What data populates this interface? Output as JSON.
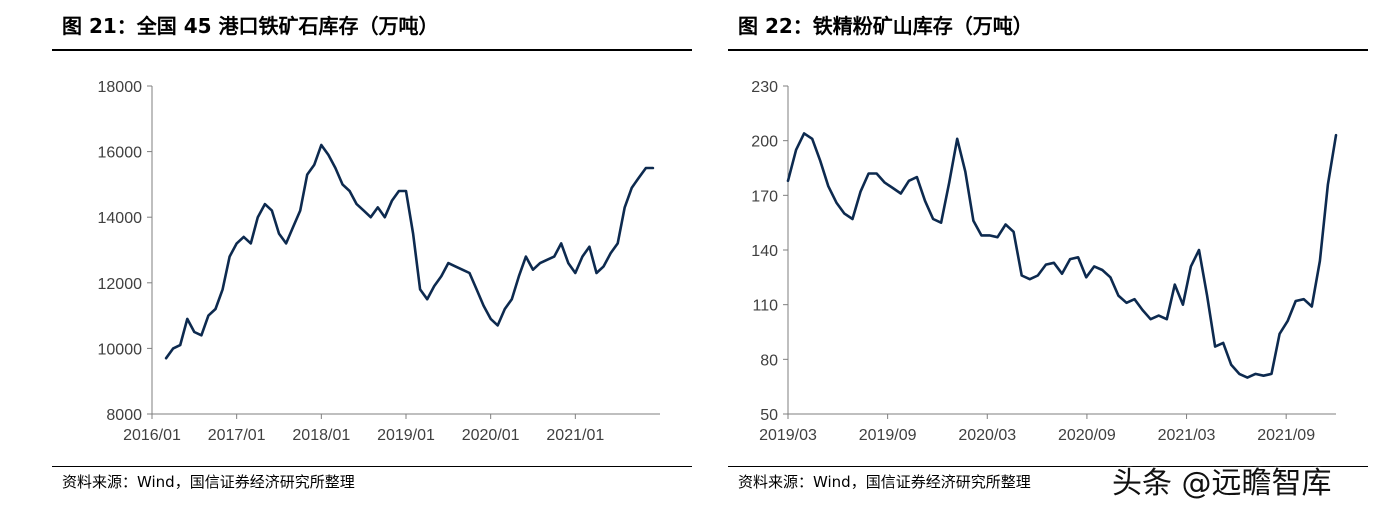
{
  "panels": [
    {
      "title": "图 21：全国 45 港口铁矿石库存（万吨）",
      "source": "资料来源：Wind，国信证券经济研究所整理"
    },
    {
      "title": "图 22：铁精粉矿山库存（万吨）",
      "source": "资料来源：Wind，国信证券经济研究所整理"
    }
  ],
  "watermark": "头条 @远瞻智库",
  "chart_data": [
    {
      "type": "line",
      "title": "全国 45 港口铁矿石库存（万吨）",
      "series_color": "#0d2a4f",
      "ylim": [
        8000,
        18000
      ],
      "yticks": [
        8000,
        10000,
        12000,
        14000,
        16000,
        18000
      ],
      "xticks": [
        "2016/01",
        "2017/01",
        "2018/01",
        "2019/01",
        "2020/01",
        "2021/01"
      ],
      "x_range": [
        "2016/01",
        "2022/01"
      ],
      "grid": false,
      "series": [
        {
          "x": [
            "2016/03",
            "2016/04",
            "2016/05",
            "2016/06",
            "2016/07",
            "2016/08",
            "2016/09",
            "2016/10",
            "2016/11",
            "2016/12",
            "2017/01",
            "2017/02",
            "2017/03",
            "2017/04",
            "2017/05",
            "2017/06",
            "2017/07",
            "2017/08",
            "2017/09",
            "2017/10",
            "2017/11",
            "2017/12",
            "2018/01",
            "2018/02",
            "2018/03",
            "2018/04",
            "2018/05",
            "2018/06",
            "2018/07",
            "2018/08",
            "2018/09",
            "2018/10",
            "2018/11",
            "2018/12",
            "2019/01",
            "2019/02",
            "2019/03",
            "2019/04",
            "2019/05",
            "2019/06",
            "2019/07",
            "2019/08",
            "2019/09",
            "2019/10",
            "2019/11",
            "2019/12",
            "2020/01",
            "2020/02",
            "2020/03",
            "2020/04",
            "2020/05",
            "2020/06",
            "2020/07",
            "2020/08",
            "2020/09",
            "2020/10",
            "2020/11",
            "2020/12",
            "2021/01",
            "2021/02",
            "2021/03",
            "2021/04",
            "2021/05",
            "2021/06",
            "2021/07",
            "2021/08",
            "2021/09",
            "2021/10",
            "2021/11",
            "2021/12"
          ],
          "values": [
            9700,
            10000,
            10100,
            10900,
            10500,
            10400,
            11000,
            11200,
            11800,
            12800,
            13200,
            13400,
            13200,
            14000,
            14400,
            14200,
            13500,
            13200,
            13700,
            14200,
            15300,
            15600,
            16200,
            15900,
            15500,
            15000,
            14800,
            14400,
            14200,
            14000,
            14300,
            14000,
            14500,
            14800,
            14800,
            13500,
            11800,
            11500,
            11900,
            12200,
            12600,
            12500,
            12400,
            12300,
            11800,
            11300,
            10900,
            10700,
            11200,
            11500,
            12200,
            12800,
            12400,
            12600,
            12700,
            12800,
            13200,
            12600,
            12300,
            12800,
            13100,
            12300,
            12500,
            12900,
            13200,
            14300,
            14900,
            15200,
            15500,
            15500
          ]
        }
      ]
    },
    {
      "type": "line",
      "title": "铁精粉矿山库存（万吨）",
      "series_color": "#0d2a4f",
      "ylim": [
        50,
        230
      ],
      "yticks": [
        50,
        80,
        110,
        140,
        170,
        200,
        230
      ],
      "xticks": [
        "2019/03",
        "2019/09",
        "2020/03",
        "2020/09",
        "2021/03",
        "2021/09"
      ],
      "x_range": [
        "2019/03",
        "2021/12"
      ],
      "grid": false,
      "series": [
        {
          "values": [
            178,
            195,
            204,
            201,
            189,
            175,
            166,
            160,
            157,
            172,
            182,
            182,
            177,
            174,
            171,
            178,
            180,
            167,
            157,
            155,
            177,
            201,
            183,
            156,
            148,
            148,
            147,
            154,
            150,
            126,
            124,
            126,
            132,
            133,
            127,
            135,
            136,
            125,
            131,
            129,
            125,
            115,
            111,
            113,
            107,
            102,
            104,
            102,
            121,
            110,
            131,
            140,
            115,
            87,
            89,
            77,
            72,
            70,
            72,
            71,
            72,
            94,
            101,
            112,
            113,
            109,
            134,
            176,
            203
          ]
        }
      ]
    }
  ]
}
